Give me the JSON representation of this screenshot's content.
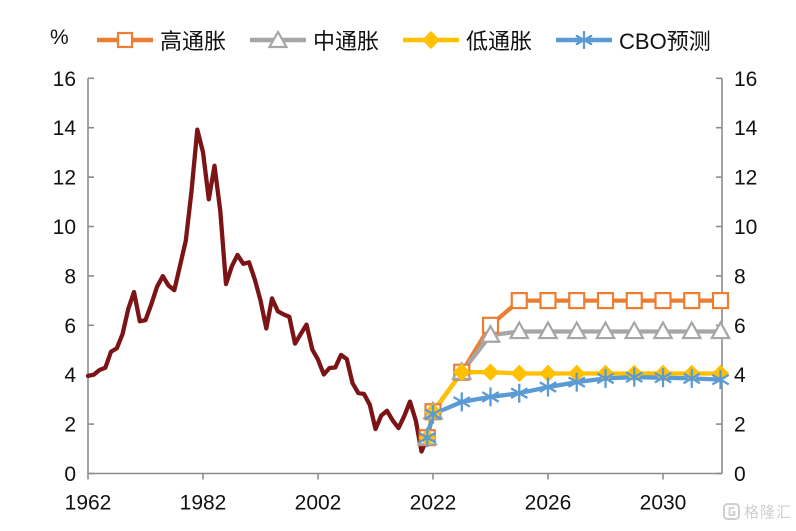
{
  "watermark": {
    "text": "格隆汇",
    "logo": "gelonghui-logo"
  },
  "chart_data": {
    "type": "line",
    "title": "",
    "unit_label": "%",
    "legend_position": "top",
    "grid": false,
    "x_axis": {
      "tick_labels": [
        "1962",
        "1982",
        "2002",
        "2022",
        "2026",
        "2030"
      ],
      "tick_years": [
        1962,
        1982,
        2002,
        2022,
        2026,
        2030
      ],
      "range": [
        1962,
        2032.5
      ],
      "scale_note": "dual scale: 20-year spacing 1962-2022, 4-year spacing 2022-2030"
    },
    "y_axis": {
      "min": 0,
      "max": 16,
      "tick_step": 2,
      "ticks": [
        0,
        2,
        4,
        6,
        8,
        10,
        12,
        14,
        16
      ],
      "sides": "both"
    },
    "series": [
      {
        "id": "historical",
        "name": "",
        "in_legend": false,
        "color": "#7C1416",
        "marker": "none",
        "start_year": 1962,
        "values": [
          3.95,
          4.0,
          4.19,
          4.28,
          4.93,
          5.07,
          5.64,
          6.67,
          7.35,
          6.16,
          6.21,
          6.85,
          7.56,
          7.99,
          7.61,
          7.42,
          8.41,
          9.43,
          11.43,
          13.92,
          13.01,
          11.1,
          12.46,
          10.62,
          7.67,
          8.39,
          8.85,
          8.49,
          8.55,
          7.86,
          7.01,
          5.87,
          7.09,
          6.57,
          6.44,
          6.35,
          5.26,
          5.65,
          6.03,
          5.02,
          4.61,
          4.01,
          4.27,
          4.29,
          4.8,
          4.63,
          3.66,
          3.26,
          3.22,
          2.78,
          1.8,
          2.35,
          2.54,
          2.14,
          1.84,
          2.33,
          2.91,
          2.14,
          0.89,
          1.45
        ]
      },
      {
        "id": "high-inflation",
        "name": "高通胀",
        "in_legend": true,
        "color": "#ED7D31",
        "marker": "open-square",
        "start_year": 2021,
        "values": [
          1.45,
          2.5,
          4.1,
          6.0,
          7.0,
          7.0,
          7.0,
          7.0,
          7.0,
          7.0,
          7.0,
          7.0
        ]
      },
      {
        "id": "mid-inflation",
        "name": "中通胀",
        "in_legend": true,
        "color": "#A6A6A6",
        "marker": "open-triangle",
        "start_year": 2021,
        "values": [
          1.45,
          2.5,
          4.1,
          5.6,
          5.75,
          5.75,
          5.75,
          5.75,
          5.75,
          5.75,
          5.75,
          5.75
        ]
      },
      {
        "id": "low-inflation",
        "name": "低通胀",
        "in_legend": true,
        "color": "#FFC000",
        "marker": "diamond",
        "start_year": 2021,
        "values": [
          1.45,
          2.5,
          4.1,
          4.1,
          4.05,
          4.05,
          4.05,
          4.05,
          4.05,
          4.05,
          4.05,
          4.05
        ]
      },
      {
        "id": "cbo-forecast",
        "name": "CBO预测",
        "in_legend": true,
        "color": "#5B9BD5",
        "marker": "asterisk",
        "start_year": 2021,
        "values": [
          1.45,
          2.4,
          2.9,
          3.1,
          3.25,
          3.5,
          3.7,
          3.85,
          3.9,
          3.88,
          3.85,
          3.8
        ]
      }
    ]
  }
}
